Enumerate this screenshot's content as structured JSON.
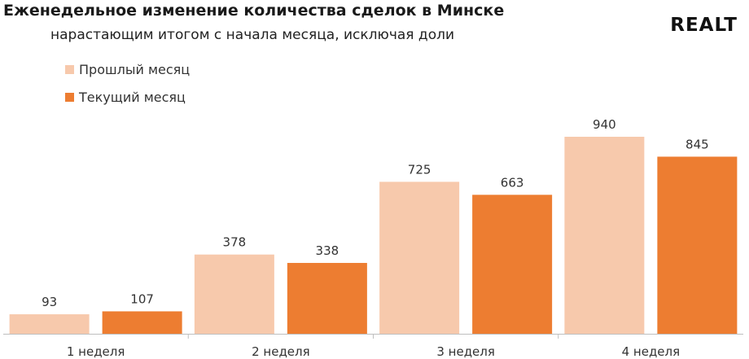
{
  "header": {
    "title": "Еженедельное изменение количества сделок в Минске",
    "subtitle": "нарастающим итогом с начала месяца, исключая доли",
    "logo": "REALT"
  },
  "colors": {
    "previous": "#f7c9ac",
    "current": "#ed7d31",
    "axis": "#bfbfbf"
  },
  "chart_data": {
    "type": "bar",
    "title": "Еженедельное изменение количества сделок в Минске",
    "subtitle": "нарастающим итогом с начала месяца, исключая доли",
    "categories": [
      "1 неделя",
      "2 неделя",
      "3 неделя",
      "4 неделя"
    ],
    "series": [
      {
        "name": "Прошлый месяц",
        "values": [
          93,
          378,
          725,
          940
        ]
      },
      {
        "name": "Текущий месяц",
        "values": [
          107,
          338,
          663,
          845
        ]
      }
    ],
    "ylim": [
      0,
      1000
    ],
    "grid": false,
    "legend": "top-left",
    "data_labels": true
  }
}
